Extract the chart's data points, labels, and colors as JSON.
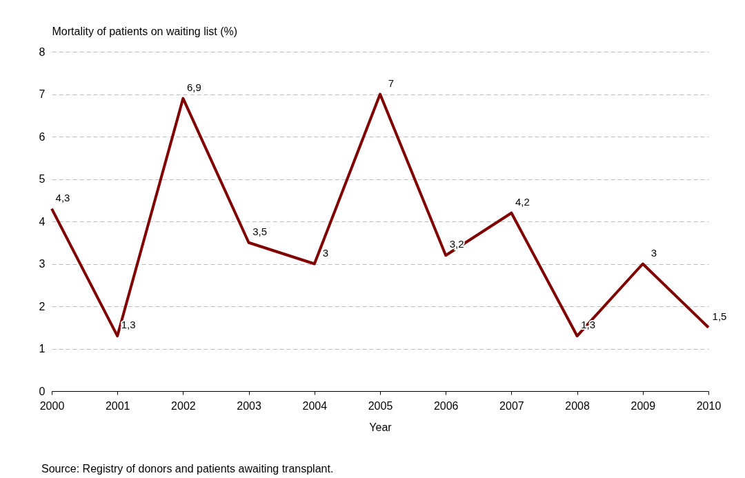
{
  "chart_data": {
    "type": "line",
    "ylabel": "Mortality of patients on waiting list (%)",
    "xlabel": "Year",
    "x": [
      2000,
      2001,
      2002,
      2003,
      2004,
      2005,
      2006,
      2007,
      2008,
      2009,
      2010
    ],
    "series": [
      {
        "color": "#800000",
        "values": [
          4.3,
          1.3,
          6.9,
          3.5,
          3.0,
          7.0,
          3.2,
          4.2,
          1.3,
          3.0,
          1.5
        ],
        "value_labels": [
          "4,3",
          "1,3",
          "6,9",
          "3,5",
          "3",
          "7",
          "3,2",
          "4,2",
          "1,3",
          "3",
          "1,5"
        ]
      }
    ],
    "xlim": [
      2000,
      2010
    ],
    "xticks": [
      2000,
      2001,
      2002,
      2003,
      2004,
      2005,
      2006,
      2007,
      2008,
      2009,
      2010
    ],
    "ylim": [
      0,
      8
    ],
    "yticks": [
      0,
      1,
      2,
      3,
      4,
      5,
      6,
      7,
      8
    ],
    "grid": "y",
    "marker": "none",
    "line_style": "solid",
    "annotations": [
      "Source: Registry of donors and patients awaiting transplant."
    ]
  }
}
